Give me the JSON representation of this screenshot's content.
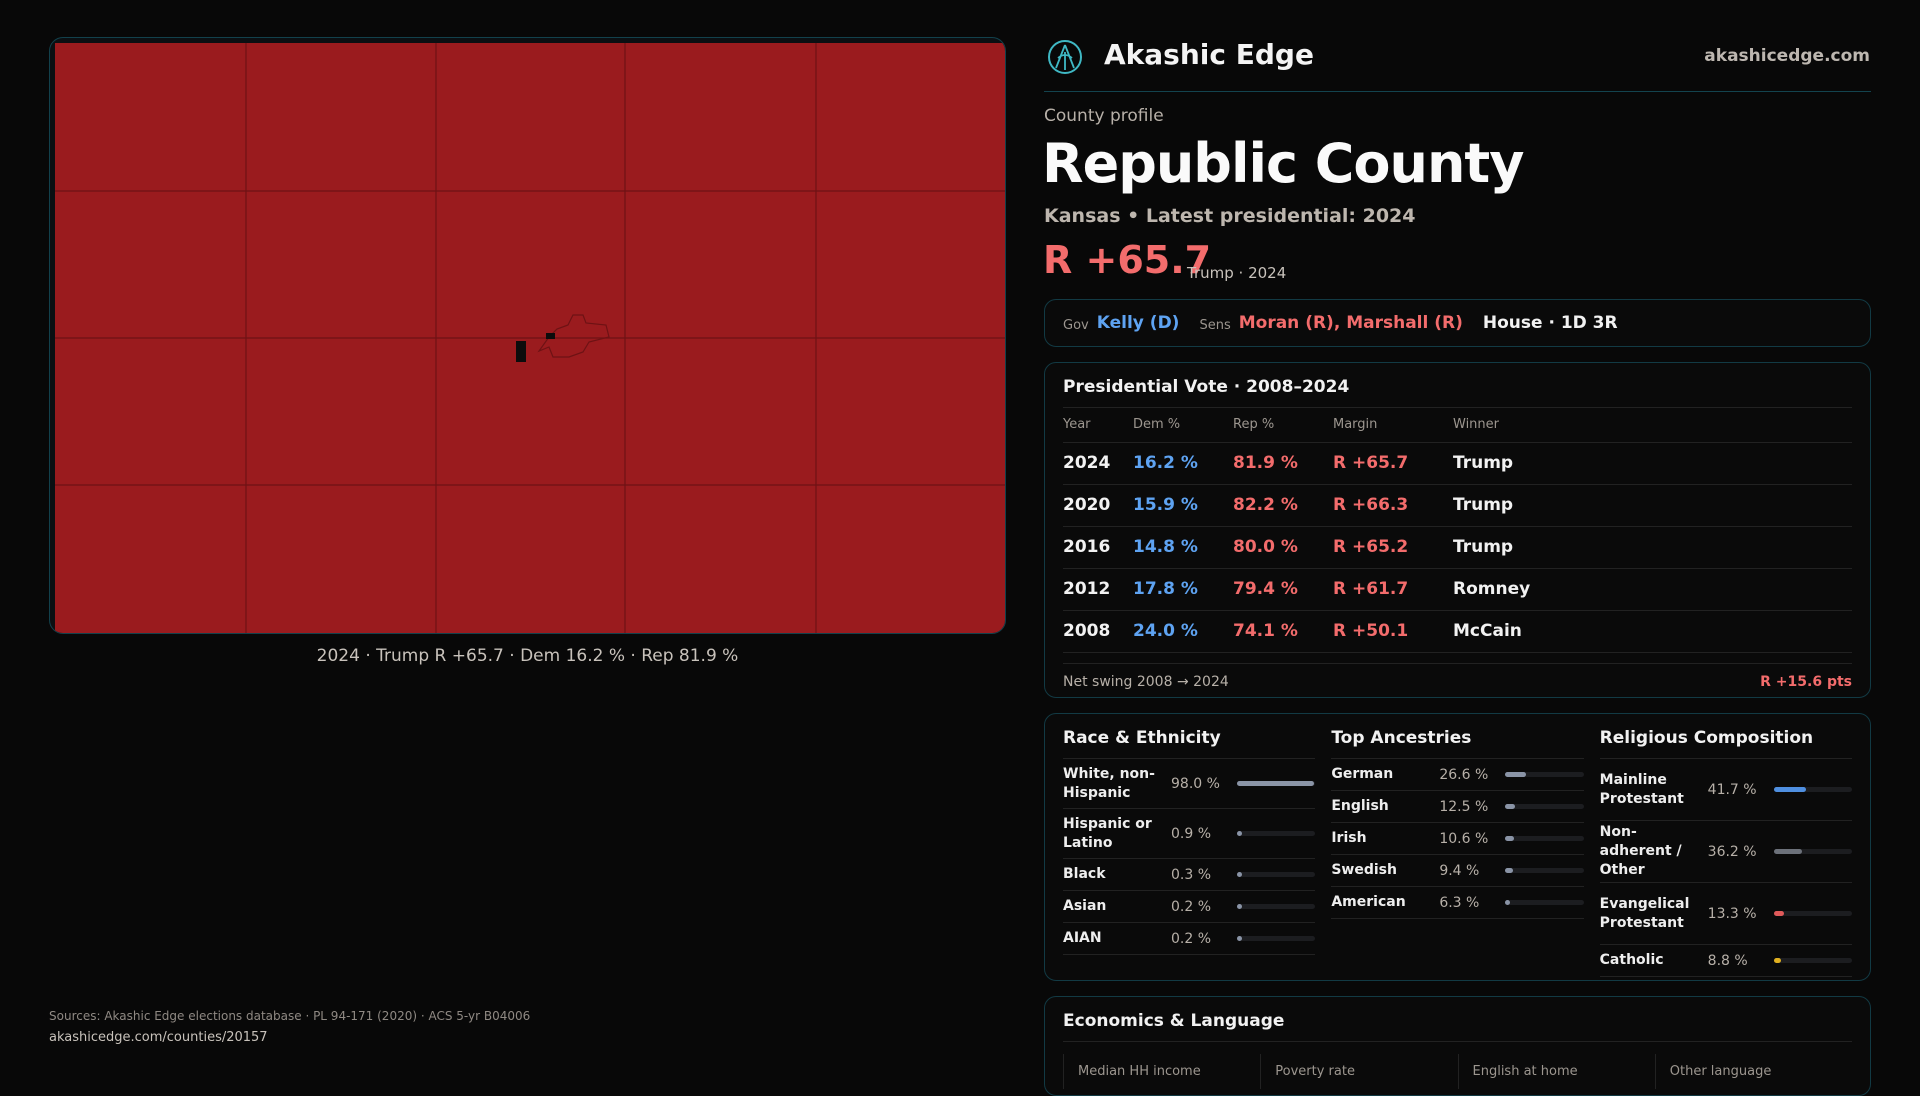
{
  "brand": {
    "name": "Akashic Edge",
    "site": "akashicedge.com",
    "logo_icon": "akashic-logo-icon"
  },
  "map": {
    "fill_color": "#9a1b1e",
    "caption": "2024 · Trump R +65.7 · Dem 16.2 % · Rep 81.9 %"
  },
  "profile": {
    "kicker": "County profile",
    "title": "Republic County",
    "subtitle": "Kansas • Latest presidential: 2024",
    "margin": "R +65.7",
    "margin_sub": "Trump · 2024"
  },
  "officials": {
    "gov_label": "Gov",
    "gov": "Kelly (D)",
    "sens_label": "Sens",
    "sens": "Moran (R), Marshall (R)",
    "house": "House · 1D 3R"
  },
  "presidential": {
    "title": "Presidential Vote · 2008–2024",
    "headers": [
      "Year",
      "Dem %",
      "Rep %",
      "Margin",
      "Winner"
    ],
    "rows": [
      [
        "2024",
        "16.2 %",
        "81.9 %",
        "R +65.7",
        "Trump"
      ],
      [
        "2020",
        "15.9 %",
        "82.2 %",
        "R +66.3",
        "Trump"
      ],
      [
        "2016",
        "14.8 %",
        "80.0 %",
        "R +65.2",
        "Trump"
      ],
      [
        "2012",
        "17.8 %",
        "79.4 %",
        "R +61.7",
        "Romney"
      ],
      [
        "2008",
        "24.0 %",
        "74.1 %",
        "R +50.1",
        "McCain"
      ]
    ],
    "swing_label": "Net swing 2008 → 2024",
    "swing_value": "R +15.6 pts"
  },
  "race": {
    "title": "Race & Ethnicity",
    "items": [
      {
        "name": "White, non-Hispanic",
        "value": "98.0 %",
        "pct": 98.0,
        "color": "#8a94a6"
      },
      {
        "name": "Hispanic or Latino",
        "value": "0.9 %",
        "pct": 0.9,
        "color": "#8a94a6"
      },
      {
        "name": "Black",
        "value": "0.3 %",
        "pct": 0.3,
        "color": "#8a94a6"
      },
      {
        "name": "Asian",
        "value": "0.2 %",
        "pct": 0.2,
        "color": "#8a94a6"
      },
      {
        "name": "AIAN",
        "value": "0.2 %",
        "pct": 0.2,
        "color": "#8a94a6"
      }
    ]
  },
  "ancestry": {
    "title": "Top Ancestries",
    "items": [
      {
        "name": "German",
        "value": "26.6 %",
        "pct": 26.6,
        "color": "#8a94a6"
      },
      {
        "name": "English",
        "value": "12.5 %",
        "pct": 12.5,
        "color": "#8a94a6"
      },
      {
        "name": "Irish",
        "value": "10.6 %",
        "pct": 10.6,
        "color": "#8a94a6"
      },
      {
        "name": "Swedish",
        "value": "9.4 %",
        "pct": 9.4,
        "color": "#8a94a6"
      },
      {
        "name": "American",
        "value": "6.3 %",
        "pct": 6.3,
        "color": "#8a94a6"
      }
    ]
  },
  "religion": {
    "title": "Religious Composition",
    "items": [
      {
        "name": "Mainline Protestant",
        "value": "41.7 %",
        "pct": 41.7,
        "color": "#4f8fe0"
      },
      {
        "name": "Non-adherent / Other",
        "value": "36.2 %",
        "pct": 36.2,
        "color": "#6c717a"
      },
      {
        "name": "Evangelical Protestant",
        "value": "13.3 %",
        "pct": 13.3,
        "color": "#e05a5a"
      },
      {
        "name": "Catholic",
        "value": "8.8 %",
        "pct": 8.8,
        "color": "#e0b020"
      }
    ]
  },
  "economics": {
    "title": "Economics & Language",
    "headers": [
      "Median HH income",
      "Poverty rate",
      "English at home",
      "Other language"
    ]
  },
  "sources": {
    "text": "Sources: Akashic Edge elections database · PL 94-171 (2020) · ACS 5-yr B04006",
    "url": "akashicedge.com/counties/20157"
  }
}
